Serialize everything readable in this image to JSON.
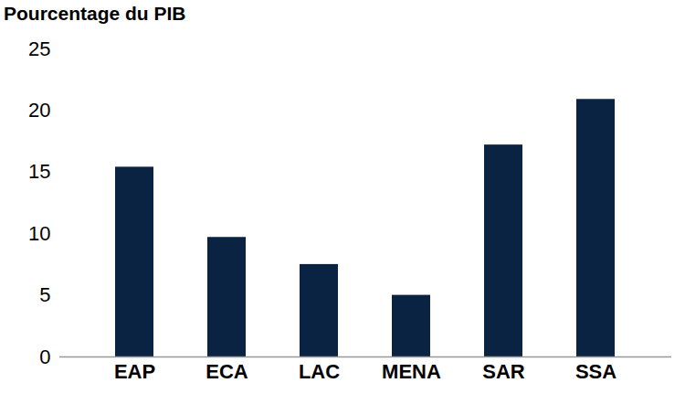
{
  "chart_data": {
    "type": "bar",
    "y_label": "Pourcentage du PIB",
    "categories": [
      "EAP",
      "ECA",
      "LAC",
      "MENA",
      "SAR",
      "SSA"
    ],
    "values": [
      15.4,
      9.7,
      7.5,
      5.0,
      17.2,
      20.9
    ],
    "color": "#0b2343",
    "ylim": [
      0,
      25
    ],
    "yticks": [
      0,
      5,
      10,
      15,
      20,
      25
    ],
    "grid": false
  }
}
